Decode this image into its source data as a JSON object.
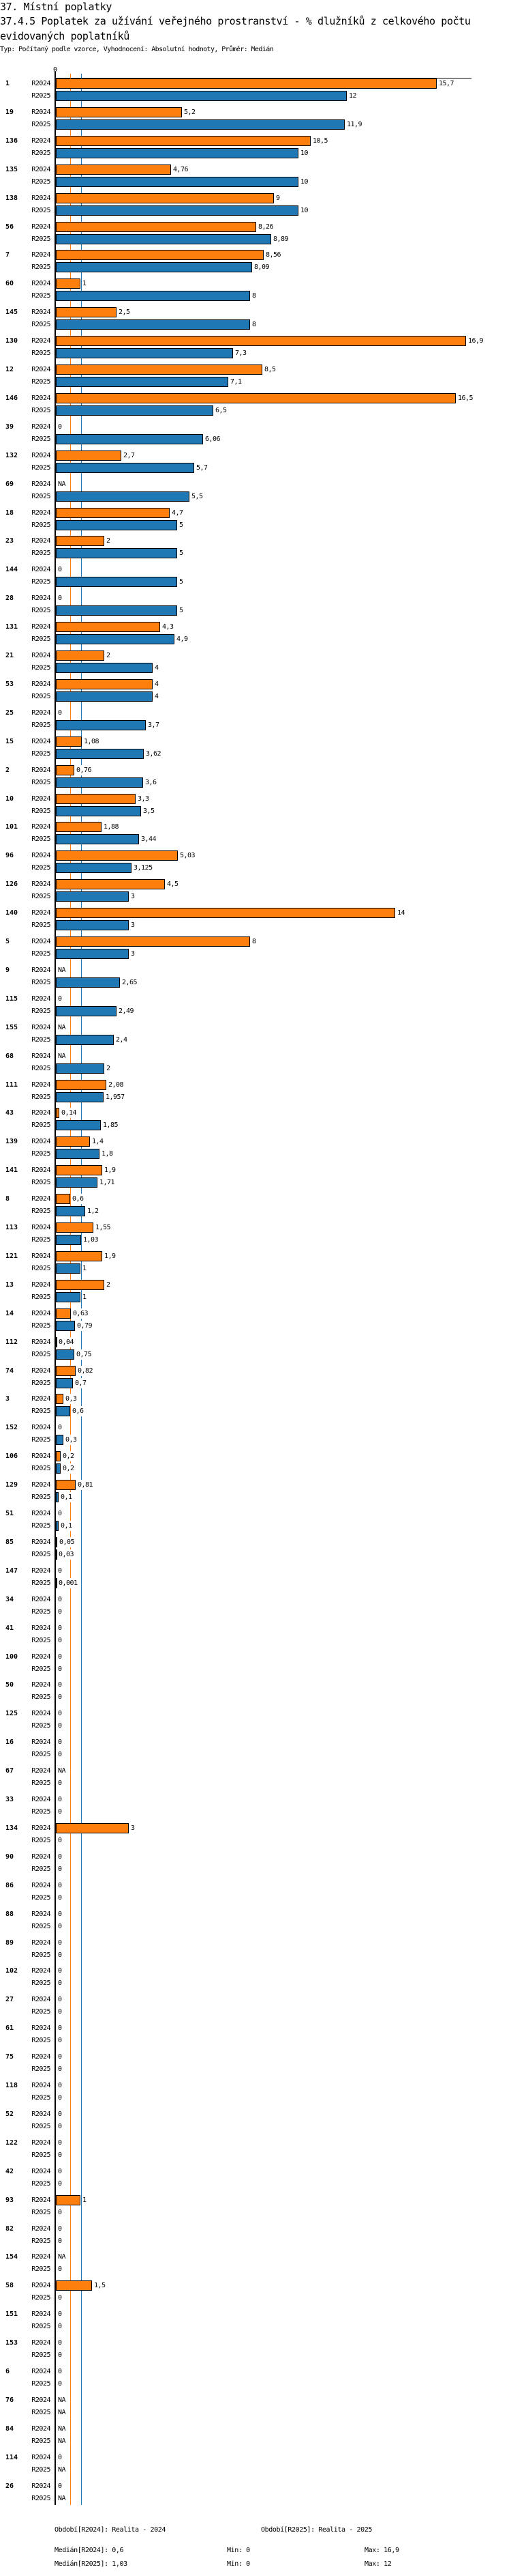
{
  "header": {
    "section_title": "37. Místní poplatky",
    "chart_title_line1": "37.4.5 Poplatek za užívání veřejného prostranství - % dlužníků z celkového počtu",
    "chart_title_line2": "evidovaných poplatníků",
    "subtitle": "Typ: Počítaný podle vzorce, Vyhodnocení: Absolutní hodnoty, Průměr: Medián"
  },
  "colors": {
    "R2024": "#ff7f0e",
    "R2025": "#1f77b4"
  },
  "chart_data": {
    "type": "bar",
    "orientation": "horizontal",
    "axis_tick_label": "0",
    "xlim": [
      0,
      17
    ],
    "series_names": [
      "R2024",
      "R2025"
    ],
    "categories": [
      "1",
      "19",
      "136",
      "135",
      "138",
      "56",
      "7",
      "60",
      "145",
      "130",
      "12",
      "146",
      "39",
      "132",
      "69",
      "18",
      "23",
      "144",
      "28",
      "131",
      "21",
      "53",
      "25",
      "15",
      "2",
      "10",
      "101",
      "96",
      "126",
      "140",
      "5",
      "9",
      "115",
      "155",
      "68",
      "111",
      "43",
      "139",
      "141",
      "8",
      "113",
      "121",
      "13",
      "14",
      "112",
      "74",
      "3",
      "152",
      "106",
      "129",
      "51",
      "85",
      "147",
      "34",
      "41",
      "100",
      "50",
      "125",
      "16",
      "67",
      "33",
      "134",
      "90",
      "86",
      "88",
      "89",
      "102",
      "27",
      "61",
      "75",
      "118",
      "52",
      "122",
      "42",
      "93",
      "82",
      "154",
      "58",
      "151",
      "153",
      "6",
      "76",
      "84",
      "114",
      "26"
    ],
    "series": [
      {
        "name": "R2024",
        "values": [
          15.7,
          5.2,
          10.5,
          4.76,
          9,
          8.26,
          8.56,
          1,
          2.5,
          16.9,
          8.5,
          16.5,
          0,
          2.7,
          null,
          4.7,
          2,
          0,
          0,
          4.3,
          2,
          4,
          0,
          1.08,
          0.76,
          3.3,
          1.88,
          5.03,
          4.5,
          14,
          8,
          null,
          0,
          null,
          null,
          2.08,
          0.14,
          1.4,
          1.9,
          0.6,
          1.55,
          1.9,
          2,
          0.63,
          0.04,
          0.82,
          0.3,
          0,
          0.2,
          0.81,
          0,
          0.05,
          0,
          0,
          0,
          0,
          0,
          0,
          0,
          null,
          0,
          3,
          0,
          0,
          0,
          0,
          0,
          0,
          0,
          0,
          0,
          0,
          0,
          0,
          1,
          0,
          null,
          1.5,
          0,
          0,
          0,
          null,
          null,
          0,
          0
        ]
      },
      {
        "name": "R2025",
        "values": [
          12,
          11.9,
          10,
          10,
          10,
          8.89,
          8.09,
          8,
          8,
          7.3,
          7.1,
          6.5,
          6.06,
          5.7,
          5.5,
          5,
          5,
          5,
          5,
          4.9,
          4,
          4,
          3.7,
          3.62,
          3.6,
          3.5,
          3.44,
          3.125,
          3,
          3,
          3,
          2.65,
          2.49,
          2.4,
          2,
          1.957,
          1.85,
          1.8,
          1.71,
          1.2,
          1.03,
          1,
          1,
          0.79,
          0.75,
          0.7,
          0.6,
          0.3,
          0.2,
          0.1,
          0.1,
          0.03,
          0.001,
          0,
          0,
          0,
          0,
          0,
          0,
          0,
          0,
          0,
          0,
          0,
          0,
          0,
          0,
          0,
          0,
          0,
          0,
          0,
          0,
          0,
          0,
          0,
          0,
          0,
          0,
          0,
          0,
          null,
          null,
          null,
          null
        ]
      }
    ],
    "na_label": "NA",
    "medians": {
      "R2024": 0.6,
      "R2025": 1.03
    }
  },
  "legend": {
    "period_2024": "Období[R2024]: Realita - 2024",
    "period_2025": "Období[R2025]: Realita - 2025",
    "median_2024": "Medián[R2024]: 0,6",
    "median_2025": "Medián[R2025]: 1,03",
    "min_2024": "Min: 0",
    "min_2025": "Min: 0",
    "max_2024": "Max: 16,9",
    "max_2025": "Max: 12"
  }
}
